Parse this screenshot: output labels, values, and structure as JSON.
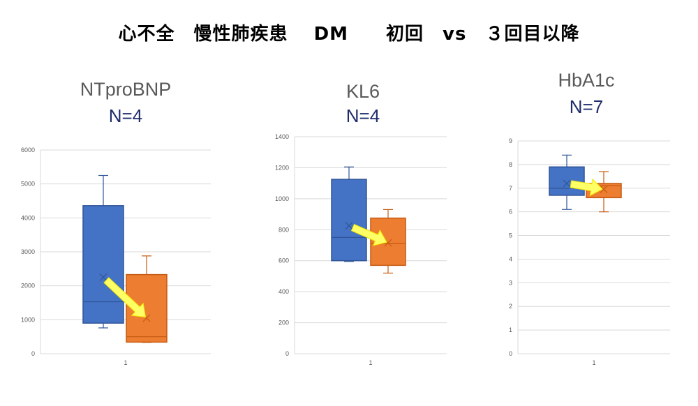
{
  "title": "心不全　慢性肺疾患　 DM　　初回　vs　３回目以降",
  "colors": {
    "first": "#4472c4",
    "first_edge": "#2f5597",
    "later": "#ed7d31",
    "later_edge": "#c55a11",
    "arrow": "#ffff66",
    "grid": "#d9d9d9",
    "axis_text": "#595959",
    "n_text": "#1f2d6b"
  },
  "panels": [
    {
      "name": "NTproBNP",
      "n_label": "N=4"
    },
    {
      "name": "KL6",
      "n_label": "N=4"
    },
    {
      "name": "HbA1c",
      "n_label": "N=7"
    }
  ],
  "chart_data": [
    {
      "type": "box",
      "title": "NTproBNP",
      "subtitle": "N=4",
      "categories": [
        "1"
      ],
      "ylim": [
        0,
        6000
      ],
      "yticks": [
        0,
        1000,
        2000,
        3000,
        4000,
        5000,
        6000
      ],
      "grid": true,
      "series": [
        {
          "name": "初回",
          "color": "#4472c4",
          "min": 760,
          "q1": 900,
          "median": 1530,
          "q3": 4360,
          "max": 5250,
          "mean": 2250
        },
        {
          "name": "３回目以降",
          "color": "#ed7d31",
          "min": 330,
          "q1": 340,
          "median": 500,
          "q3": 2330,
          "max": 2880,
          "mean": 1050
        }
      ],
      "annotation": "yellow arrow from first-visit mean to later mean"
    },
    {
      "type": "box",
      "title": "KL6",
      "subtitle": "N=4",
      "categories": [
        "1"
      ],
      "ylim": [
        0,
        1400
      ],
      "yticks": [
        0,
        200,
        400,
        600,
        800,
        1000,
        1200,
        1400
      ],
      "grid": true,
      "series": [
        {
          "name": "初回",
          "color": "#4472c4",
          "min": 595,
          "q1": 600,
          "median": 750,
          "q3": 1125,
          "max": 1205,
          "mean": 825
        },
        {
          "name": "３回目以降",
          "color": "#ed7d31",
          "min": 520,
          "q1": 570,
          "median": 710,
          "q3": 875,
          "max": 930,
          "mean": 715
        }
      ],
      "annotation": "yellow arrow from first-visit mean to later mean"
    },
    {
      "type": "box",
      "title": "HbA1c",
      "subtitle": "N=7",
      "categories": [
        "1"
      ],
      "ylim": [
        0,
        9
      ],
      "yticks": [
        0,
        1,
        2,
        3,
        4,
        5,
        6,
        7,
        8,
        9
      ],
      "grid": true,
      "series": [
        {
          "name": "初回",
          "color": "#4472c4",
          "min": 6.1,
          "q1": 6.7,
          "median": 7.0,
          "q3": 7.9,
          "max": 8.4,
          "mean": 7.2
        },
        {
          "name": "３回目以降",
          "color": "#ed7d31",
          "min": 6.0,
          "q1": 6.6,
          "median": 7.1,
          "q3": 7.2,
          "max": 7.7,
          "mean": 6.95
        },
        {
          "_note": ""
        }
      ],
      "annotation": "yellow arrow from first-visit mean to later mean"
    }
  ]
}
